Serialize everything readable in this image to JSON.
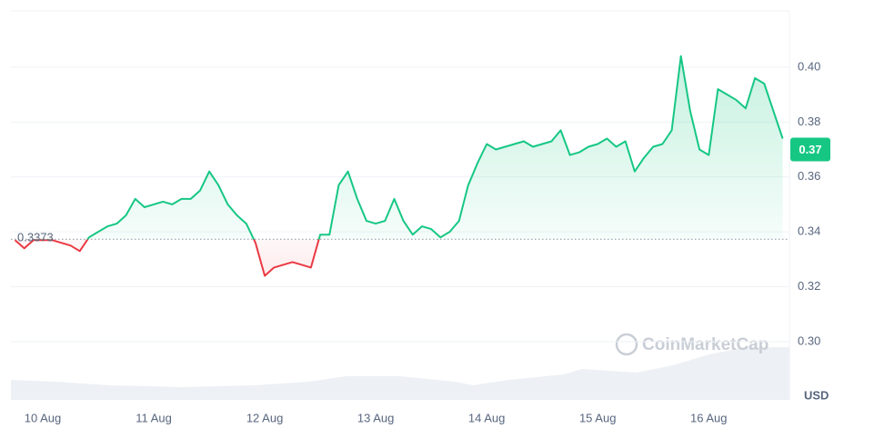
{
  "chart_data": {
    "type": "line",
    "categories": [
      null,
      null,
      null,
      "10 Aug",
      null,
      null,
      null,
      null,
      null,
      null,
      null,
      null,
      null,
      null,
      null,
      "11 Aug",
      null,
      null,
      null,
      null,
      null,
      null,
      null,
      null,
      null,
      null,
      null,
      "12 Aug",
      null,
      null,
      null,
      null,
      null,
      null,
      null,
      null,
      null,
      null,
      null,
      "13 Aug",
      null,
      null,
      null,
      null,
      null,
      null,
      null,
      null,
      null,
      null,
      null,
      "14 Aug",
      null,
      null,
      null,
      null,
      null,
      null,
      null,
      null,
      null,
      null,
      null,
      "15 Aug",
      null,
      null,
      null,
      null,
      null,
      null,
      null,
      null,
      null,
      null,
      null,
      "16 Aug",
      null,
      null,
      null,
      null,
      null,
      null,
      null,
      null
    ],
    "values": [
      0.337,
      0.334,
      0.337,
      0.337,
      0.337,
      0.336,
      0.335,
      0.333,
      0.338,
      0.34,
      0.342,
      0.343,
      0.346,
      0.352,
      0.349,
      0.35,
      0.351,
      0.35,
      0.352,
      0.352,
      0.355,
      0.362,
      0.357,
      0.35,
      0.346,
      0.343,
      0.336,
      0.324,
      0.327,
      0.328,
      0.329,
      0.328,
      0.327,
      0.339,
      0.339,
      0.357,
      0.362,
      0.352,
      0.344,
      0.343,
      0.344,
      0.352,
      0.344,
      0.339,
      0.342,
      0.341,
      0.338,
      0.34,
      0.344,
      0.357,
      0.365,
      0.372,
      0.37,
      0.371,
      0.372,
      0.373,
      0.371,
      0.372,
      0.373,
      0.377,
      0.368,
      0.369,
      0.371,
      0.372,
      0.374,
      0.371,
      0.373,
      0.362,
      0.367,
      0.371,
      0.372,
      0.377,
      0.404,
      0.384,
      0.37,
      0.368,
      0.392,
      0.39,
      0.388,
      0.385,
      0.396,
      0.394,
      0.384,
      0.374
    ],
    "up_color": "#16c784",
    "down_color": "#ea3943",
    "baseline": 0.3373,
    "price_tag": 0.37,
    "ylim": [
      0.2788,
      0.4205
    ],
    "yticks": [
      {
        "value": 0.3,
        "label": "0.30"
      },
      0.32,
      0.34,
      0.36,
      0.38,
      {
        "value": 0.4,
        "label": "0.40"
      }
    ],
    "grid": true,
    "y_unit": "USD",
    "watermark": "CoinMarketCap"
  }
}
